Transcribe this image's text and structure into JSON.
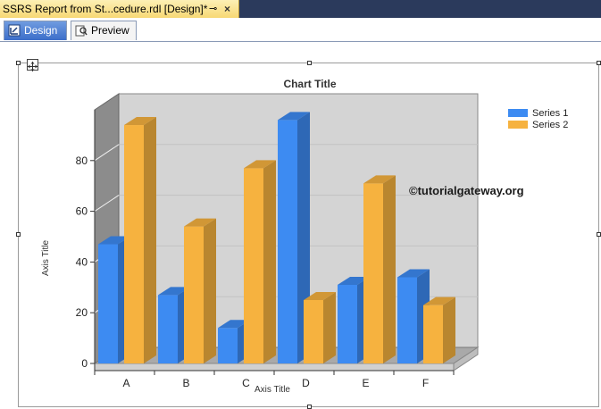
{
  "document_tab": {
    "title": "SSRS Report from St...cedure.rdl [Design]*",
    "pin_glyph": "⊸",
    "close_glyph": "×"
  },
  "view_tabs": [
    {
      "label": "Design",
      "icon": "report-design-icon",
      "active": true
    },
    {
      "label": "Preview",
      "icon": "preview-icon",
      "active": false
    }
  ],
  "watermark": "©tutorialgateway.org",
  "chart_data": {
    "type": "bar",
    "title": "Chart Title",
    "xlabel": "Axis Title",
    "ylabel": "Axis Title",
    "categories": [
      "A",
      "B",
      "C",
      "D",
      "E",
      "F"
    ],
    "series": [
      {
        "name": "Series 1",
        "values": [
          47,
          27,
          14,
          96,
          31,
          34
        ],
        "color": "#3d8bf2"
      },
      {
        "name": "Series 2",
        "values": [
          94,
          54,
          77,
          25,
          71,
          23
        ],
        "color": "#f6b23f"
      }
    ],
    "yticks": [
      0,
      20,
      40,
      60,
      80
    ],
    "ylim": [
      0,
      100
    ],
    "grid": true,
    "legend_position": "top-right",
    "three_d": true
  }
}
